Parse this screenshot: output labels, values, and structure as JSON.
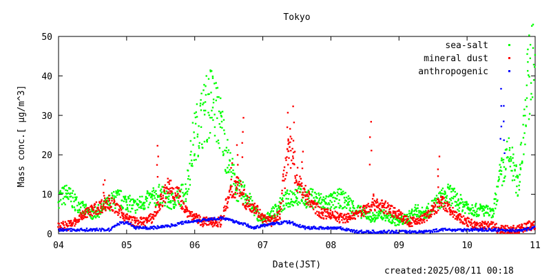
{
  "chart_data": {
    "type": "scatter",
    "title": "Tokyo",
    "xlabel": "Date(JST)",
    "ylabel": "Mass conc.[ μg/m^3]",
    "xlim": [
      "2025-08-04",
      "2025-08-11"
    ],
    "ylim": [
      0,
      50
    ],
    "xticks": [
      "04",
      "05",
      "06",
      "07",
      "08",
      "09",
      "10",
      "11"
    ],
    "yticks": [
      0,
      10,
      20,
      30,
      40,
      50
    ],
    "legend_position": "top-right",
    "grid": false,
    "series": [
      {
        "name": "sea-salt",
        "color": "#00ff00",
        "points": [
          [
            "2025-08-04 00:00",
            9
          ],
          [
            "2025-08-04 03:00",
            10
          ],
          [
            "2025-08-04 06:00",
            8
          ],
          [
            "2025-08-04 09:00",
            6
          ],
          [
            "2025-08-04 12:00",
            5
          ],
          [
            "2025-08-04 15:00",
            6
          ],
          [
            "2025-08-04 18:00",
            8
          ],
          [
            "2025-08-04 21:00",
            9
          ],
          [
            "2025-08-05 00:00",
            8
          ],
          [
            "2025-08-05 03:00",
            7
          ],
          [
            "2025-08-05 06:00",
            8
          ],
          [
            "2025-08-05 09:00",
            9
          ],
          [
            "2025-08-05 12:00",
            10
          ],
          [
            "2025-08-05 15:00",
            8
          ],
          [
            "2025-08-05 18:00",
            9
          ],
          [
            "2025-08-05 21:00",
            11
          ],
          [
            "2025-08-06 00:00",
            25
          ],
          [
            "2025-08-06 03:00",
            30
          ],
          [
            "2025-08-06 06:00",
            34
          ],
          [
            "2025-08-06 09:00",
            28
          ],
          [
            "2025-08-06 12:00",
            18
          ],
          [
            "2025-08-06 15:00",
            11
          ],
          [
            "2025-08-06 18:00",
            10
          ],
          [
            "2025-08-06 21:00",
            6
          ],
          [
            "2025-08-07 00:00",
            3
          ],
          [
            "2025-08-07 03:00",
            5
          ],
          [
            "2025-08-07 06:00",
            7
          ],
          [
            "2025-08-07 09:00",
            9
          ],
          [
            "2025-08-07 12:00",
            10
          ],
          [
            "2025-08-07 15:00",
            9
          ],
          [
            "2025-08-07 18:00",
            9
          ],
          [
            "2025-08-07 21:00",
            8
          ],
          [
            "2025-08-08 00:00",
            8
          ],
          [
            "2025-08-08 03:00",
            9
          ],
          [
            "2025-08-08 06:00",
            8
          ],
          [
            "2025-08-08 09:00",
            6
          ],
          [
            "2025-08-08 12:00",
            5
          ],
          [
            "2025-08-08 15:00",
            4
          ],
          [
            "2025-08-08 18:00",
            5
          ],
          [
            "2025-08-08 21:00",
            4
          ],
          [
            "2025-08-09 00:00",
            3
          ],
          [
            "2025-08-09 03:00",
            4
          ],
          [
            "2025-08-09 06:00",
            6
          ],
          [
            "2025-08-09 09:00",
            5
          ],
          [
            "2025-08-09 12:00",
            7
          ],
          [
            "2025-08-09 15:00",
            9
          ],
          [
            "2025-08-09 18:00",
            10
          ],
          [
            "2025-08-09 21:00",
            8
          ],
          [
            "2025-08-10 00:00",
            7
          ],
          [
            "2025-08-10 03:00",
            6
          ],
          [
            "2025-08-10 06:00",
            6
          ],
          [
            "2025-08-10 09:00",
            5
          ],
          [
            "2025-08-10 12:00",
            15
          ],
          [
            "2025-08-10 15:00",
            20
          ],
          [
            "2025-08-10 18:00",
            12
          ],
          [
            "2025-08-10 21:00",
            35
          ],
          [
            "2025-08-11 00:00",
            50
          ]
        ]
      },
      {
        "name": "mineral dust",
        "color": "#ff0000",
        "points": [
          [
            "2025-08-04 00:00",
            2
          ],
          [
            "2025-08-04 03:00",
            2
          ],
          [
            "2025-08-04 06:00",
            3
          ],
          [
            "2025-08-04 09:00",
            5
          ],
          [
            "2025-08-04 12:00",
            6
          ],
          [
            "2025-08-04 15:00",
            7
          ],
          [
            "2025-08-04 18:00",
            8
          ],
          [
            "2025-08-04 21:00",
            6
          ],
          [
            "2025-08-05 00:00",
            4
          ],
          [
            "2025-08-05 03:00",
            3
          ],
          [
            "2025-08-05 06:00",
            3
          ],
          [
            "2025-08-05 09:00",
            4
          ],
          [
            "2025-08-05 12:00",
            8
          ],
          [
            "2025-08-05 15:00",
            12
          ],
          [
            "2025-08-05 18:00",
            10
          ],
          [
            "2025-08-05 21:00",
            6
          ],
          [
            "2025-08-06 00:00",
            4
          ],
          [
            "2025-08-06 03:00",
            3
          ],
          [
            "2025-08-06 06:00",
            3
          ],
          [
            "2025-08-06 09:00",
            3
          ],
          [
            "2025-08-06 12:00",
            9
          ],
          [
            "2025-08-06 15:00",
            13
          ],
          [
            "2025-08-06 18:00",
            8
          ],
          [
            "2025-08-06 21:00",
            7
          ],
          [
            "2025-08-07 00:00",
            4
          ],
          [
            "2025-08-07 03:00",
            3
          ],
          [
            "2025-08-07 06:00",
            5
          ],
          [
            "2025-08-07 09:00",
            23
          ],
          [
            "2025-08-07 12:00",
            14
          ],
          [
            "2025-08-07 15:00",
            10
          ],
          [
            "2025-08-07 18:00",
            7
          ],
          [
            "2025-08-07 21:00",
            5
          ],
          [
            "2025-08-08 00:00",
            5
          ],
          [
            "2025-08-08 03:00",
            4
          ],
          [
            "2025-08-08 06:00",
            4
          ],
          [
            "2025-08-08 09:00",
            5
          ],
          [
            "2025-08-08 12:00",
            6
          ],
          [
            "2025-08-08 15:00",
            8
          ],
          [
            "2025-08-08 18:00",
            7
          ],
          [
            "2025-08-08 21:00",
            6
          ],
          [
            "2025-08-09 00:00",
            5
          ],
          [
            "2025-08-09 03:00",
            3
          ],
          [
            "2025-08-09 06:00",
            3
          ],
          [
            "2025-08-09 09:00",
            4
          ],
          [
            "2025-08-09 12:00",
            6
          ],
          [
            "2025-08-09 15:00",
            8
          ],
          [
            "2025-08-09 18:00",
            6
          ],
          [
            "2025-08-09 21:00",
            4
          ],
          [
            "2025-08-10 00:00",
            3
          ],
          [
            "2025-08-10 03:00",
            2
          ],
          [
            "2025-08-10 06:00",
            2
          ],
          [
            "2025-08-10 09:00",
            2
          ],
          [
            "2025-08-10 12:00",
            1
          ],
          [
            "2025-08-10 15:00",
            1
          ],
          [
            "2025-08-10 18:00",
            1
          ],
          [
            "2025-08-10 21:00",
            2
          ],
          [
            "2025-08-11 00:00",
            2
          ]
        ],
        "peaks": [
          [
            "2025-08-05 11:00",
            22.5
          ],
          [
            "2025-08-06 13:00",
            18.5
          ],
          [
            "2025-08-06 15:00",
            22
          ],
          [
            "2025-08-06 17:00",
            29.5
          ],
          [
            "2025-08-07 09:00",
            30.5
          ],
          [
            "2025-08-07 11:00",
            32
          ],
          [
            "2025-08-07 14:00",
            21
          ],
          [
            "2025-08-08 14:00",
            28
          ],
          [
            "2025-08-09 14:00",
            19
          ],
          [
            "2025-08-04 16:00",
            14
          ]
        ]
      },
      {
        "name": "anthropogenic",
        "color": "#0000ff",
        "points": [
          [
            "2025-08-04 00:00",
            1
          ],
          [
            "2025-08-04 06:00",
            1
          ],
          [
            "2025-08-04 12:00",
            1
          ],
          [
            "2025-08-04 18:00",
            1
          ],
          [
            "2025-08-04 21:00",
            2.5
          ],
          [
            "2025-08-05 00:00",
            3
          ],
          [
            "2025-08-05 03:00",
            1.5
          ],
          [
            "2025-08-05 09:00",
            1.5
          ],
          [
            "2025-08-05 15:00",
            2
          ],
          [
            "2025-08-05 21:00",
            3
          ],
          [
            "2025-08-06 03:00",
            3.5
          ],
          [
            "2025-08-06 09:00",
            4
          ],
          [
            "2025-08-06 15:00",
            3
          ],
          [
            "2025-08-06 21:00",
            1.5
          ],
          [
            "2025-08-07 03:00",
            2.5
          ],
          [
            "2025-08-07 09:00",
            3
          ],
          [
            "2025-08-07 15:00",
            1.5
          ],
          [
            "2025-08-07 21:00",
            1.5
          ],
          [
            "2025-08-08 03:00",
            1.5
          ],
          [
            "2025-08-08 09:00",
            0.5
          ],
          [
            "2025-08-08 15:00",
            0.5
          ],
          [
            "2025-08-08 21:00",
            0.5
          ],
          [
            "2025-08-09 03:00",
            0.5
          ],
          [
            "2025-08-09 09:00",
            0.5
          ],
          [
            "2025-08-09 15:00",
            1
          ],
          [
            "2025-08-09 21:00",
            1
          ],
          [
            "2025-08-10 03:00",
            1
          ],
          [
            "2025-08-10 09:00",
            1
          ],
          [
            "2025-08-10 15:00",
            0.8
          ],
          [
            "2025-08-10 21:00",
            1
          ],
          [
            "2025-08-11 00:00",
            2
          ]
        ],
        "peaks": [
          [
            "2025-08-10 12:00",
            36.5
          ],
          [
            "2025-08-10 13:00",
            32
          ]
        ]
      }
    ]
  },
  "footer": {
    "created": "created:2025/08/11 00:18"
  }
}
